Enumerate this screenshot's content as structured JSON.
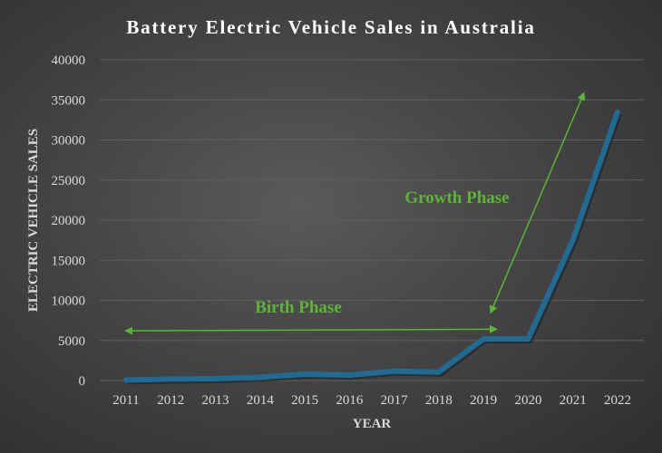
{
  "chart_data": {
    "type": "line",
    "title": "Battery Electric Vehicle Sales in Australia",
    "xlabel": "YEAR",
    "ylabel": "ELECTRIC VEHICLE SALES",
    "categories": [
      "2011",
      "2012",
      "2013",
      "2014",
      "2015",
      "2016",
      "2017",
      "2018",
      "2019",
      "2020",
      "2021",
      "2022"
    ],
    "values": [
      60,
      190,
      230,
      410,
      790,
      680,
      1170,
      1050,
      5200,
      5200,
      17500,
      33500
    ],
    "ylim": [
      0,
      40000
    ],
    "yticks": [
      0,
      5000,
      10000,
      15000,
      20000,
      25000,
      30000,
      35000,
      40000
    ],
    "grid": true,
    "legend": "none",
    "colors": {
      "line": "#1f6b94",
      "annotation": "#5cb534",
      "text": "#d9d9d9",
      "title": "#ffffff"
    },
    "annotations": [
      {
        "text": "Birth Phase",
        "arrow": "double",
        "from": [
          "2011",
          6200
        ],
        "to": [
          "2019",
          6400
        ]
      },
      {
        "text": "Growth Phase",
        "arrow": "double",
        "from": [
          "2019",
          8500
        ],
        "to": [
          "2021",
          35800
        ]
      }
    ]
  }
}
